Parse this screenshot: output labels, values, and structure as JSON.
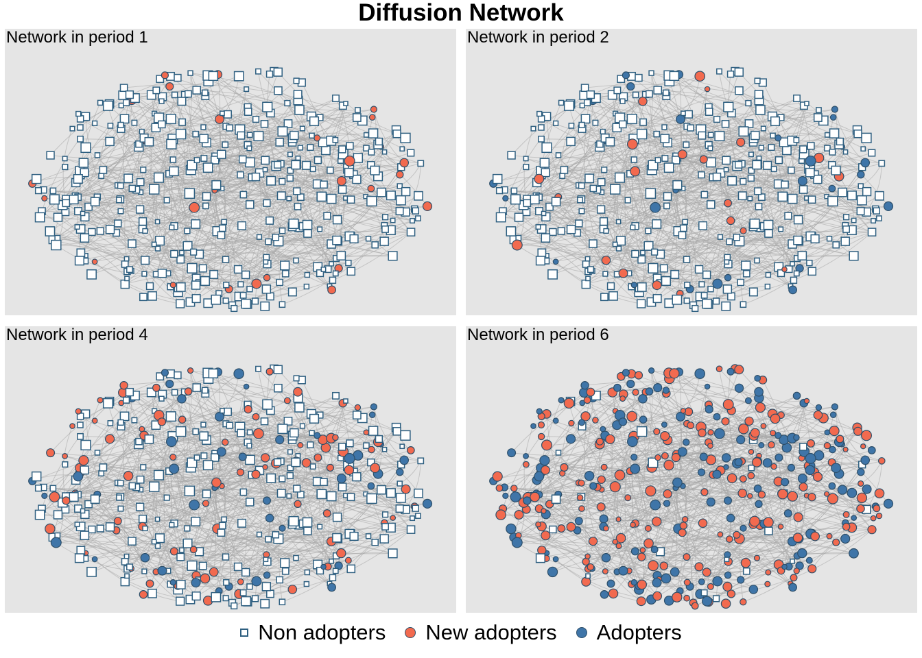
{
  "title": "Diffusion Network",
  "colors": {
    "background_panel": "#e5e5e5",
    "edge": "#a8a8a8",
    "non_adopter_fill": "#ffffff",
    "node_outline": "#2e5f80",
    "new_adopter_fill": "#f26a4f",
    "adopter_fill": "#3f75a8"
  },
  "legend": {
    "non_adopters": "Non adopters",
    "new_adopters": "New adopters",
    "adopters": "Adopters"
  },
  "chart_data": {
    "type": "network",
    "panels": [
      {
        "label": "Network in period 1",
        "period": 1,
        "share_adopters": 0.0,
        "share_new_adopters": 0.05
      },
      {
        "label": "Network in period 2",
        "period": 2,
        "share_adopters": 0.05,
        "share_new_adopters": 0.07
      },
      {
        "label": "Network in period 4",
        "period": 4,
        "share_adopters": 0.12,
        "share_new_adopters": 0.22
      },
      {
        "label": "Network in period 6",
        "period": 6,
        "share_adopters": 0.42,
        "share_new_adopters": 0.53
      }
    ],
    "node_states": [
      "non_adopter",
      "new_adopter",
      "adopter"
    ],
    "grid": false
  }
}
